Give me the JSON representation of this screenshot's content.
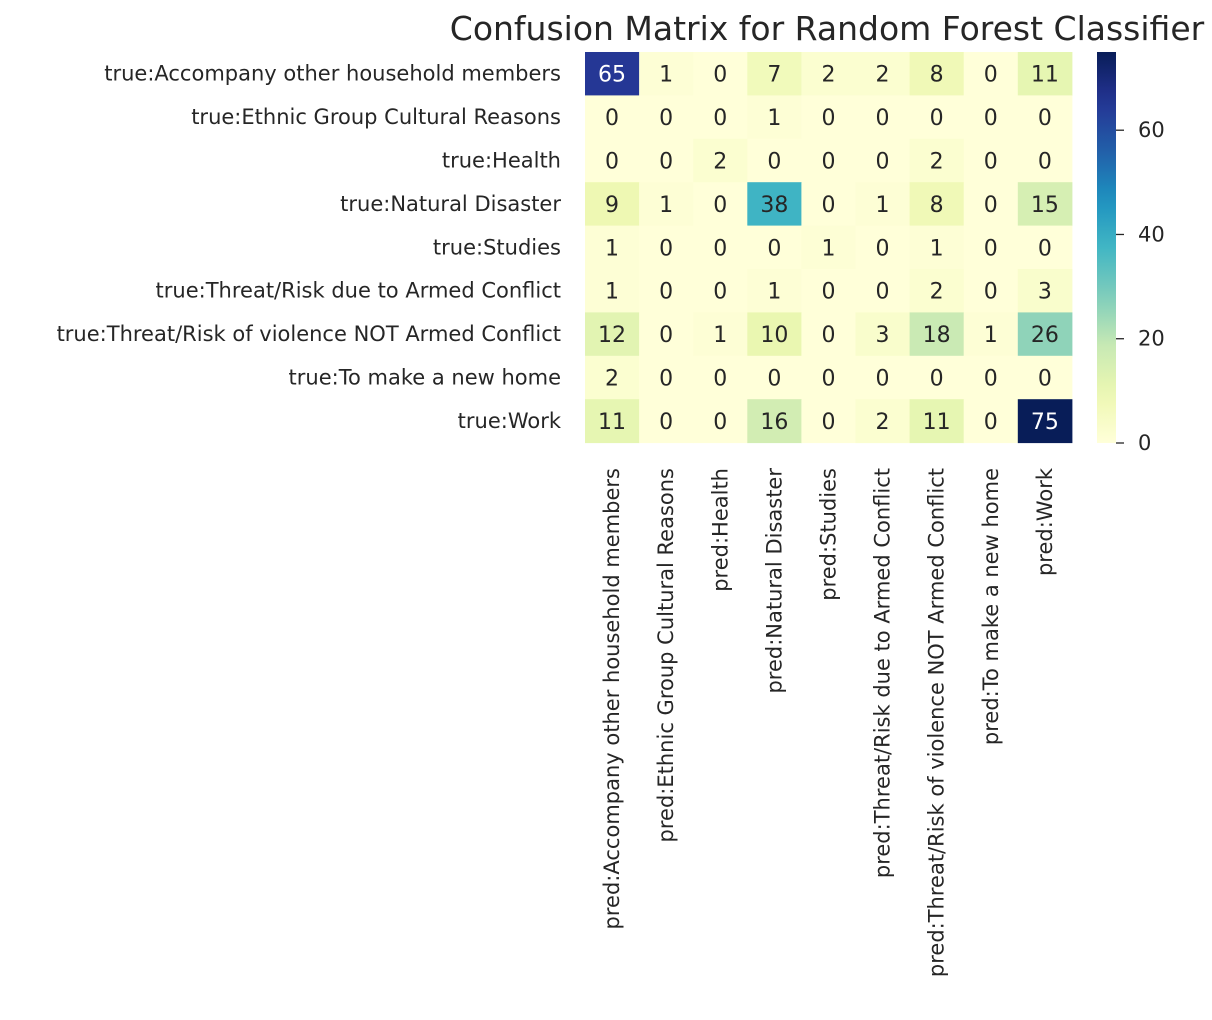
{
  "chart_data": {
    "type": "heatmap",
    "title": "Confusion Matrix for Random Forest Classifier",
    "row_labels": [
      "true:Accompany other household members",
      "true:Ethnic Group Cultural Reasons",
      "true:Health",
      "true:Natural Disaster",
      "true:Studies",
      "true:Threat/Risk due to Armed Conflict",
      "true:Threat/Risk of violence NOT Armed Conflict",
      "true:To make a new home",
      "true:Work"
    ],
    "col_labels": [
      "pred:Accompany other household members",
      "pred:Ethnic Group Cultural Reasons",
      "pred:Health",
      "pred:Natural Disaster",
      "pred:Studies",
      "pred:Threat/Risk due to Armed Conflict",
      "pred:Threat/Risk of violence NOT Armed Conflict",
      "pred:To make a new home",
      "pred:Work"
    ],
    "values": [
      [
        65,
        1,
        0,
        7,
        2,
        2,
        8,
        0,
        11
      ],
      [
        0,
        0,
        0,
        1,
        0,
        0,
        0,
        0,
        0
      ],
      [
        0,
        0,
        2,
        0,
        0,
        0,
        2,
        0,
        0
      ],
      [
        9,
        1,
        0,
        38,
        0,
        1,
        8,
        0,
        15
      ],
      [
        1,
        0,
        0,
        0,
        1,
        0,
        1,
        0,
        0
      ],
      [
        1,
        0,
        0,
        1,
        0,
        0,
        2,
        0,
        3
      ],
      [
        12,
        0,
        1,
        10,
        0,
        3,
        18,
        1,
        26
      ],
      [
        2,
        0,
        0,
        0,
        0,
        0,
        0,
        0,
        0
      ],
      [
        11,
        0,
        0,
        16,
        0,
        2,
        11,
        0,
        75
      ]
    ],
    "colormap": "YlGnBu",
    "vmin": 0,
    "vmax": 75,
    "colorbar_ticks": [
      0,
      20,
      40,
      60
    ]
  }
}
